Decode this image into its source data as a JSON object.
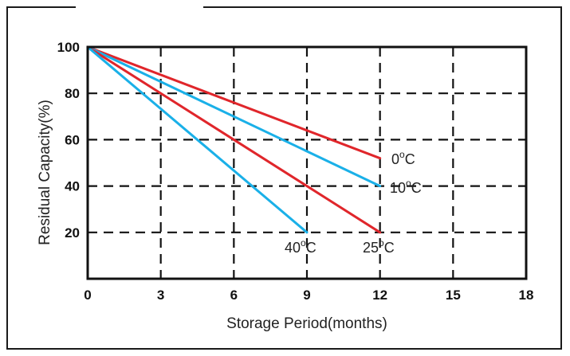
{
  "chart_data": {
    "type": "line",
    "xlabel": "Storage Period(months)",
    "ylabel": "Residual Capacity(%)",
    "xlim": [
      0,
      18
    ],
    "ylim": [
      0,
      100
    ],
    "x_ticks": [
      "0",
      "3",
      "6",
      "9",
      "12",
      "15",
      "18"
    ],
    "y_ticks": [
      "20",
      "40",
      "60",
      "80",
      "100"
    ],
    "grid": true,
    "grid_style": "dashed",
    "series": [
      {
        "name": "0°C",
        "label_main": "0",
        "label_sup": "o",
        "label_unit": "C",
        "color": "#e0262b",
        "x": [
          0,
          12
        ],
        "y": [
          100,
          52
        ]
      },
      {
        "name": "10°C",
        "label_main": "10",
        "label_sup": "o",
        "label_unit": "C",
        "color": "#1ab0e8",
        "x": [
          0,
          12
        ],
        "y": [
          100,
          40
        ]
      },
      {
        "name": "25°C",
        "label_main": "25",
        "label_sup": "o",
        "label_unit": "C",
        "color": "#e0262b",
        "x": [
          0,
          12
        ],
        "y": [
          100,
          20
        ]
      },
      {
        "name": "40°C",
        "label_main": "40",
        "label_sup": "o",
        "label_unit": "C",
        "color": "#1ab0e8",
        "x": [
          0,
          9
        ],
        "y": [
          100,
          20
        ]
      }
    ]
  }
}
